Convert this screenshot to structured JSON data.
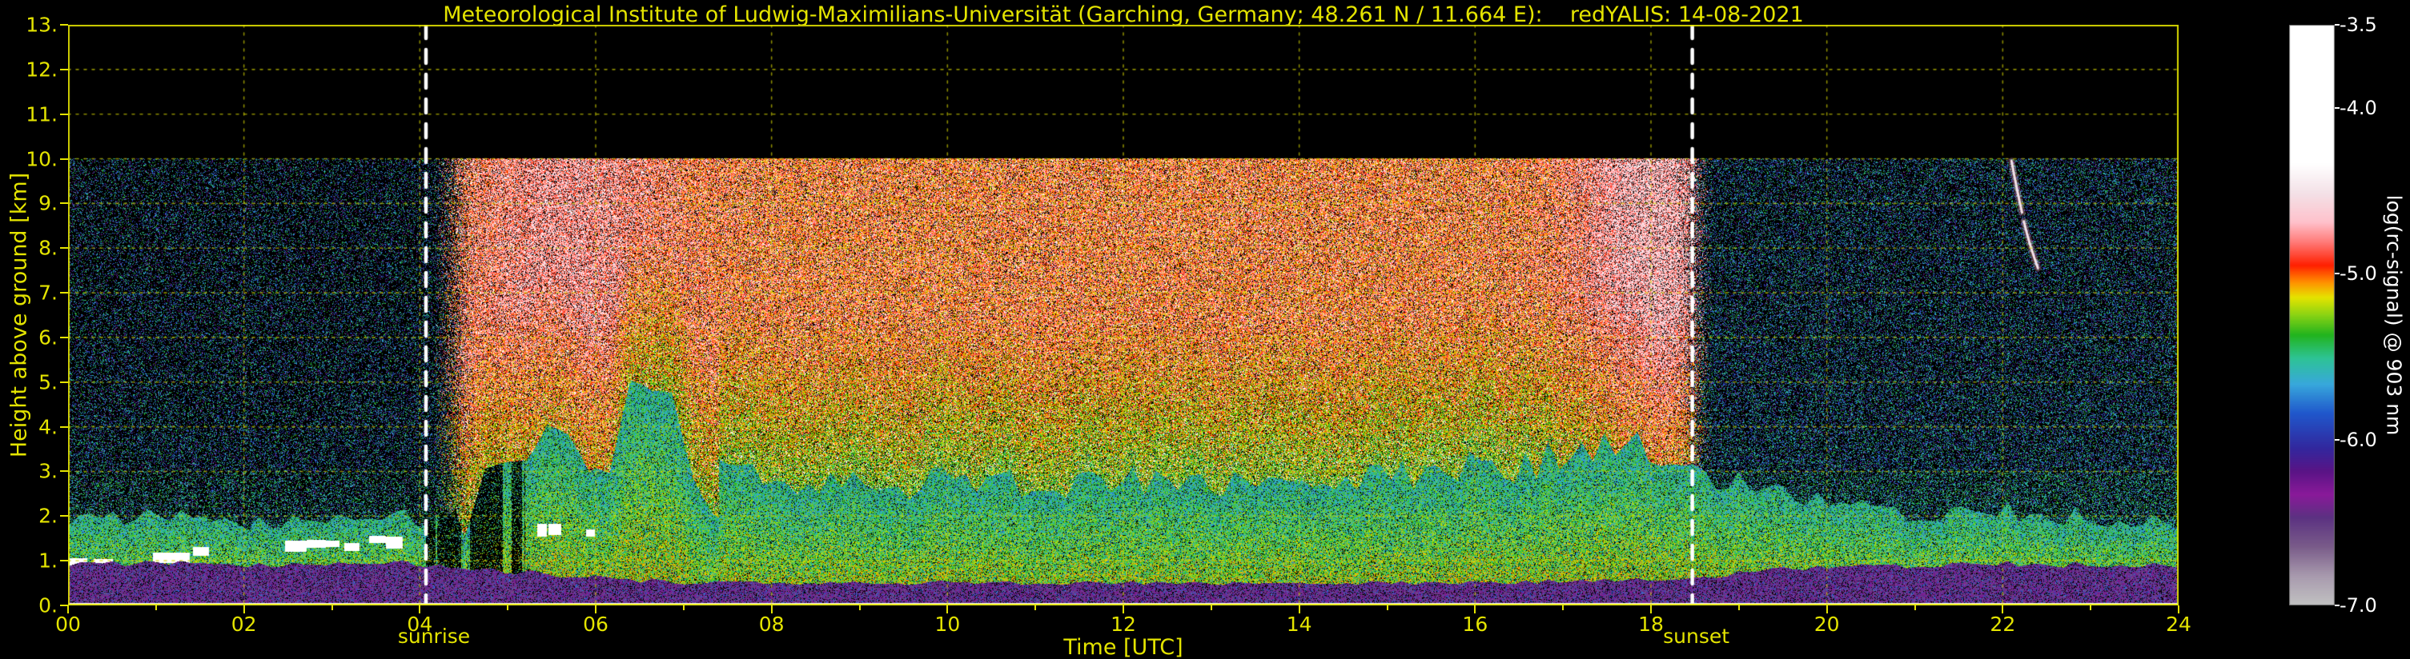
{
  "figure": {
    "background_color": "#000000",
    "axis_color": "#e4e400",
    "grid_color": "#d0d000",
    "annotation_line_color": "#ffffff",
    "colorbar_text_color": "#ffffff"
  },
  "chart_data": {
    "type": "heatmap",
    "title": "Meteorological Institute of Ludwig-Maximilians-Universität (Garching, Germany; 48.261 N / 11.664 E):    redYALIS: 14-08-2021",
    "xlabel": "Time [UTC]",
    "ylabel": "Height above ground [km]",
    "x_range_hours": [
      0,
      24
    ],
    "y_range_km": [
      0,
      13
    ],
    "data_top_km": 10,
    "grid": true,
    "x_ticks": {
      "values": [
        0,
        2,
        4,
        6,
        8,
        10,
        12,
        14,
        16,
        18,
        20,
        22,
        24
      ],
      "labels": [
        "00",
        "02",
        "04",
        "06",
        "08",
        "10",
        "12",
        "14",
        "16",
        "18",
        "20",
        "22",
        "24"
      ]
    },
    "y_ticks": {
      "values": [
        0,
        1,
        2,
        3,
        4,
        5,
        6,
        7,
        8,
        9,
        10,
        11,
        12,
        13
      ],
      "labels": [
        "0.",
        "1.",
        "2.",
        "3.",
        "4.",
        "5.",
        "6.",
        "7.",
        "8.",
        "9.",
        "10.",
        "11.",
        "12.",
        "13."
      ]
    },
    "colorbar": {
      "label": "log(rc-signal) @ 903 nm",
      "min": -7.0,
      "max": -3.5,
      "tick_values": [
        -3.5,
        -4.0,
        -5.0,
        -6.0,
        -7.0
      ],
      "tick_labels": [
        "-3.5",
        "-4.0",
        "-5.0",
        "-6.0",
        "-7.0"
      ],
      "stops": [
        [
          0.0,
          "#c2c2c2"
        ],
        [
          0.05,
          "#a89aae"
        ],
        [
          0.1,
          "#7a5c8a"
        ],
        [
          0.15,
          "#5c3282"
        ],
        [
          0.19,
          "#8a1a9a"
        ],
        [
          0.23,
          "#5a1486"
        ],
        [
          0.27,
          "#32289e"
        ],
        [
          0.33,
          "#2058cc"
        ],
        [
          0.38,
          "#38a8dc"
        ],
        [
          0.425,
          "#2ec496"
        ],
        [
          0.465,
          "#22b41e"
        ],
        [
          0.5,
          "#8cd414"
        ],
        [
          0.53,
          "#e6e400"
        ],
        [
          0.555,
          "#ff9400"
        ],
        [
          0.585,
          "#ff2000"
        ],
        [
          0.625,
          "#ff7a78"
        ],
        [
          0.66,
          "#ffc2cc"
        ],
        [
          0.71,
          "#f4e2e8"
        ],
        [
          0.76,
          "#ffffff"
        ],
        [
          1.0,
          "#ffffff"
        ]
      ]
    },
    "annotations": {
      "sunrise": {
        "label": "sunrise",
        "time_utc": 4.07
      },
      "sunset": {
        "label": "sunset",
        "time_utc": 18.47
      }
    },
    "scene": {
      "seed": 20210814,
      "daylight_hours_utc": [
        4.07,
        18.47
      ],
      "mixing_height_km": [
        [
          0,
          1.9
        ],
        [
          4,
          1.9
        ],
        [
          4.6,
          2.5
        ],
        [
          5.3,
          3.2
        ],
        [
          6,
          4.4
        ],
        [
          6.6,
          4.0
        ],
        [
          7.3,
          2.9
        ],
        [
          9,
          2.7
        ],
        [
          14,
          2.8
        ],
        [
          16.5,
          3.1
        ],
        [
          17.7,
          3.7
        ],
        [
          18.5,
          3.2
        ],
        [
          19.2,
          2.5
        ],
        [
          20.5,
          2.15
        ],
        [
          24,
          2.0
        ]
      ],
      "surface_layer_top_km": [
        [
          0,
          0.92
        ],
        [
          4.2,
          0.92
        ],
        [
          5.5,
          0.7
        ],
        [
          7,
          0.5
        ],
        [
          16,
          0.5
        ],
        [
          18.3,
          0.6
        ],
        [
          19.5,
          0.8
        ],
        [
          21,
          0.92
        ],
        [
          24,
          0.95
        ]
      ],
      "night_cloud_band": {
        "time_utc": [
          0,
          6.2
        ],
        "base_height_km": 0.92,
        "rise_km_per_hour": 0.13
      },
      "high_streak": {
        "time_utc": [
          22.05,
          22.4
        ],
        "height_km": [
          7.55,
          9.95
        ]
      }
    }
  }
}
